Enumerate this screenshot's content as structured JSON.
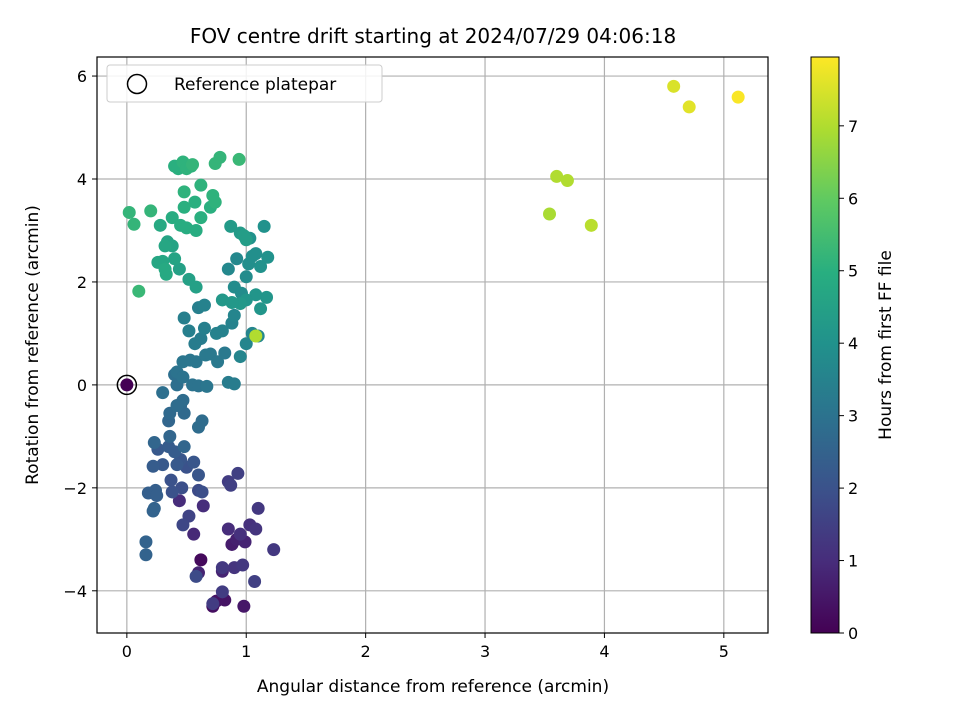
{
  "chart_data": {
    "type": "scatter",
    "title": "FOV centre drift starting at 2024/07/29 04:06:18",
    "xlabel": "Angular distance from reference (arcmin)",
    "ylabel": "Rotation from reference (arcmin)",
    "xlim": [
      -0.25,
      5.37
    ],
    "ylim": [
      -4.82,
      6.37
    ],
    "xticks": [
      0,
      1,
      2,
      3,
      4,
      5
    ],
    "yticks": [
      -4,
      -2,
      0,
      2,
      4,
      6
    ],
    "grid": true,
    "legend": {
      "position": "top-left",
      "entries": [
        "Reference platepar"
      ]
    },
    "reference_point": {
      "x": 0,
      "y": 0
    },
    "colorbar": {
      "label": "Hours from first FF file",
      "colormap": "viridis",
      "range": [
        0,
        7.95
      ],
      "ticks": [
        0,
        1,
        2,
        3,
        4,
        5,
        6,
        7
      ]
    },
    "series": [
      {
        "points": [
          {
            "x": 0.0,
            "y": 0.0,
            "c": 0.0
          },
          {
            "x": 0.62,
            "y": -3.4,
            "c": 0.2
          },
          {
            "x": 0.72,
            "y": -4.3,
            "c": 0.3
          },
          {
            "x": 0.75,
            "y": -4.2,
            "c": 0.4
          },
          {
            "x": 0.82,
            "y": -4.18,
            "c": 0.4
          },
          {
            "x": 0.98,
            "y": -4.3,
            "c": 0.5
          },
          {
            "x": 0.88,
            "y": -3.1,
            "c": 0.6
          },
          {
            "x": 0.92,
            "y": -3.0,
            "c": 0.7
          },
          {
            "x": 0.99,
            "y": -3.05,
            "c": 0.8
          },
          {
            "x": 0.8,
            "y": -3.62,
            "c": 0.8
          },
          {
            "x": 0.6,
            "y": -3.65,
            "c": 0.8
          },
          {
            "x": 0.56,
            "y": -2.9,
            "c": 0.9
          },
          {
            "x": 0.64,
            "y": -2.35,
            "c": 1.0
          },
          {
            "x": 0.44,
            "y": -2.25,
            "c": 1.0
          },
          {
            "x": 0.85,
            "y": -2.8,
            "c": 1.0
          },
          {
            "x": 0.95,
            "y": -2.9,
            "c": 1.1
          },
          {
            "x": 1.03,
            "y": -2.72,
            "c": 1.1
          },
          {
            "x": 1.08,
            "y": -2.8,
            "c": 1.2
          },
          {
            "x": 1.1,
            "y": -2.4,
            "c": 1.3
          },
          {
            "x": 1.23,
            "y": -3.2,
            "c": 1.3
          },
          {
            "x": 0.9,
            "y": -3.55,
            "c": 1.2
          },
          {
            "x": 0.97,
            "y": -3.5,
            "c": 1.3
          },
          {
            "x": 0.8,
            "y": -3.55,
            "c": 1.3
          },
          {
            "x": 0.8,
            "y": -4.02,
            "c": 1.4
          },
          {
            "x": 0.72,
            "y": -4.25,
            "c": 1.4
          },
          {
            "x": 1.07,
            "y": -3.82,
            "c": 1.5
          },
          {
            "x": 0.85,
            "y": -1.88,
            "c": 1.4
          },
          {
            "x": 0.87,
            "y": -1.95,
            "c": 1.5
          },
          {
            "x": 0.93,
            "y": -1.72,
            "c": 1.5
          },
          {
            "x": 0.52,
            "y": -2.55,
            "c": 1.6
          },
          {
            "x": 0.47,
            "y": -2.72,
            "c": 1.7
          },
          {
            "x": 0.58,
            "y": -3.72,
            "c": 1.8
          },
          {
            "x": 0.6,
            "y": -2.05,
            "c": 1.8
          },
          {
            "x": 0.63,
            "y": -2.08,
            "c": 1.9
          },
          {
            "x": 0.46,
            "y": -2.0,
            "c": 1.9
          },
          {
            "x": 0.38,
            "y": -2.08,
            "c": 2.0
          },
          {
            "x": 0.37,
            "y": -1.85,
            "c": 2.0
          },
          {
            "x": 0.5,
            "y": -1.6,
            "c": 2.0
          },
          {
            "x": 0.56,
            "y": -1.5,
            "c": 2.1
          },
          {
            "x": 0.6,
            "y": -1.75,
            "c": 2.1
          },
          {
            "x": 0.45,
            "y": -1.45,
            "c": 2.1
          },
          {
            "x": 0.42,
            "y": -1.55,
            "c": 2.2
          },
          {
            "x": 0.3,
            "y": -1.55,
            "c": 2.2
          },
          {
            "x": 0.26,
            "y": -1.25,
            "c": 2.2
          },
          {
            "x": 0.35,
            "y": -1.2,
            "c": 2.3
          },
          {
            "x": 0.4,
            "y": -1.3,
            "c": 2.3
          },
          {
            "x": 0.22,
            "y": -1.58,
            "c": 2.3
          },
          {
            "x": 0.24,
            "y": -2.05,
            "c": 2.4
          },
          {
            "x": 0.18,
            "y": -2.1,
            "c": 2.4
          },
          {
            "x": 0.25,
            "y": -2.15,
            "c": 2.4
          },
          {
            "x": 0.23,
            "y": -2.4,
            "c": 2.5
          },
          {
            "x": 0.22,
            "y": -2.45,
            "c": 2.5
          },
          {
            "x": 0.16,
            "y": -3.05,
            "c": 2.5
          },
          {
            "x": 0.16,
            "y": -3.3,
            "c": 2.5
          },
          {
            "x": 0.36,
            "y": -1.0,
            "c": 2.6
          },
          {
            "x": 0.23,
            "y": -1.12,
            "c": 2.6
          },
          {
            "x": 0.48,
            "y": -1.2,
            "c": 2.6
          },
          {
            "x": 0.35,
            "y": -0.7,
            "c": 2.6
          },
          {
            "x": 0.36,
            "y": -0.55,
            "c": 2.7
          },
          {
            "x": 0.45,
            "y": -0.4,
            "c": 2.7
          },
          {
            "x": 0.48,
            "y": -0.55,
            "c": 2.7
          },
          {
            "x": 0.6,
            "y": -0.82,
            "c": 2.8
          },
          {
            "x": 0.63,
            "y": -0.7,
            "c": 2.8
          },
          {
            "x": 0.47,
            "y": -0.3,
            "c": 2.8
          },
          {
            "x": 0.42,
            "y": -0.4,
            "c": 2.8
          },
          {
            "x": 0.3,
            "y": -0.15,
            "c": 2.9
          },
          {
            "x": 0.42,
            "y": 0.0,
            "c": 2.9
          },
          {
            "x": 0.4,
            "y": 0.2,
            "c": 2.9
          },
          {
            "x": 0.42,
            "y": 0.25,
            "c": 3.0
          },
          {
            "x": 0.47,
            "y": 0.15,
            "c": 3.0
          },
          {
            "x": 0.55,
            "y": 0.0,
            "c": 3.0
          },
          {
            "x": 0.6,
            "y": -0.02,
            "c": 3.0
          },
          {
            "x": 0.67,
            "y": -0.03,
            "c": 3.1
          },
          {
            "x": 0.47,
            "y": 0.45,
            "c": 3.1
          },
          {
            "x": 0.53,
            "y": 0.48,
            "c": 3.1
          },
          {
            "x": 0.58,
            "y": 0.45,
            "c": 3.1
          },
          {
            "x": 0.66,
            "y": 0.58,
            "c": 3.2
          },
          {
            "x": 0.7,
            "y": 0.6,
            "c": 3.2
          },
          {
            "x": 0.76,
            "y": 0.45,
            "c": 3.2
          },
          {
            "x": 0.82,
            "y": 0.62,
            "c": 3.2
          },
          {
            "x": 0.85,
            "y": 0.05,
            "c": 3.3
          },
          {
            "x": 0.9,
            "y": 0.02,
            "c": 3.3
          },
          {
            "x": 0.57,
            "y": 0.8,
            "c": 3.3
          },
          {
            "x": 0.62,
            "y": 0.9,
            "c": 3.3
          },
          {
            "x": 0.65,
            "y": 1.1,
            "c": 3.4
          },
          {
            "x": 0.52,
            "y": 1.05,
            "c": 3.4
          },
          {
            "x": 0.48,
            "y": 1.3,
            "c": 3.4
          },
          {
            "x": 0.6,
            "y": 1.5,
            "c": 3.4
          },
          {
            "x": 0.65,
            "y": 1.55,
            "c": 3.5
          },
          {
            "x": 0.75,
            "y": 1.0,
            "c": 3.5
          },
          {
            "x": 0.8,
            "y": 1.05,
            "c": 3.5
          },
          {
            "x": 0.88,
            "y": 1.2,
            "c": 3.5
          },
          {
            "x": 0.9,
            "y": 1.35,
            "c": 3.6
          },
          {
            "x": 0.95,
            "y": 0.55,
            "c": 3.6
          },
          {
            "x": 1.0,
            "y": 0.8,
            "c": 3.6
          },
          {
            "x": 1.05,
            "y": 1.0,
            "c": 3.6
          },
          {
            "x": 1.1,
            "y": 0.95,
            "c": 3.7
          },
          {
            "x": 0.85,
            "y": 2.25,
            "c": 3.7
          },
          {
            "x": 0.92,
            "y": 2.45,
            "c": 3.7
          },
          {
            "x": 0.9,
            "y": 1.9,
            "c": 3.8
          },
          {
            "x": 0.96,
            "y": 1.78,
            "c": 3.8
          },
          {
            "x": 1.0,
            "y": 2.1,
            "c": 3.8
          },
          {
            "x": 1.02,
            "y": 2.35,
            "c": 3.9
          },
          {
            "x": 1.05,
            "y": 2.5,
            "c": 3.9
          },
          {
            "x": 1.08,
            "y": 2.55,
            "c": 3.9
          },
          {
            "x": 1.12,
            "y": 2.3,
            "c": 4.0
          },
          {
            "x": 1.18,
            "y": 2.48,
            "c": 4.0
          },
          {
            "x": 1.15,
            "y": 3.08,
            "c": 4.0
          },
          {
            "x": 1.03,
            "y": 2.85,
            "c": 4.0
          },
          {
            "x": 1.17,
            "y": 1.7,
            "c": 4.1
          },
          {
            "x": 1.12,
            "y": 1.48,
            "c": 4.1
          },
          {
            "x": 1.08,
            "y": 1.75,
            "c": 4.1
          },
          {
            "x": 1.0,
            "y": 1.65,
            "c": 4.1
          },
          {
            "x": 0.95,
            "y": 1.58,
            "c": 4.2
          },
          {
            "x": 0.8,
            "y": 1.65,
            "c": 4.2
          },
          {
            "x": 0.88,
            "y": 1.6,
            "c": 4.2
          },
          {
            "x": 0.87,
            "y": 3.08,
            "c": 4.3
          },
          {
            "x": 0.95,
            "y": 2.95,
            "c": 4.3
          },
          {
            "x": 0.98,
            "y": 2.9,
            "c": 4.4
          },
          {
            "x": 1.0,
            "y": 2.82,
            "c": 4.4
          },
          {
            "x": 0.58,
            "y": 1.9,
            "c": 4.5
          },
          {
            "x": 0.52,
            "y": 2.05,
            "c": 4.5
          },
          {
            "x": 0.44,
            "y": 2.25,
            "c": 4.5
          },
          {
            "x": 0.4,
            "y": 2.45,
            "c": 4.6
          },
          {
            "x": 0.38,
            "y": 2.7,
            "c": 4.6
          },
          {
            "x": 0.34,
            "y": 2.78,
            "c": 4.6
          },
          {
            "x": 0.32,
            "y": 2.7,
            "c": 4.7
          },
          {
            "x": 0.3,
            "y": 2.4,
            "c": 4.7
          },
          {
            "x": 0.26,
            "y": 2.38,
            "c": 4.7
          },
          {
            "x": 0.33,
            "y": 2.15,
            "c": 4.8
          },
          {
            "x": 0.32,
            "y": 2.25,
            "c": 4.8
          },
          {
            "x": 0.28,
            "y": 3.1,
            "c": 4.8
          },
          {
            "x": 0.38,
            "y": 3.25,
            "c": 4.9
          },
          {
            "x": 0.45,
            "y": 3.1,
            "c": 4.9
          },
          {
            "x": 0.5,
            "y": 3.05,
            "c": 4.9
          },
          {
            "x": 0.58,
            "y": 3.0,
            "c": 4.9
          },
          {
            "x": 0.48,
            "y": 3.45,
            "c": 5.0
          },
          {
            "x": 0.57,
            "y": 3.55,
            "c": 5.0
          },
          {
            "x": 0.62,
            "y": 3.25,
            "c": 5.0
          },
          {
            "x": 0.7,
            "y": 3.45,
            "c": 5.0
          },
          {
            "x": 0.72,
            "y": 3.68,
            "c": 5.1
          },
          {
            "x": 0.74,
            "y": 3.55,
            "c": 5.1
          },
          {
            "x": 0.62,
            "y": 3.88,
            "c": 5.1
          },
          {
            "x": 0.48,
            "y": 3.75,
            "c": 5.1
          },
          {
            "x": 0.2,
            "y": 3.38,
            "c": 5.2
          },
          {
            "x": 0.02,
            "y": 3.35,
            "c": 5.2
          },
          {
            "x": 0.06,
            "y": 3.12,
            "c": 5.2
          },
          {
            "x": 0.1,
            "y": 1.82,
            "c": 5.3
          },
          {
            "x": 0.4,
            "y": 4.25,
            "c": 5.0
          },
          {
            "x": 0.43,
            "y": 4.2,
            "c": 5.0
          },
          {
            "x": 0.47,
            "y": 4.33,
            "c": 5.1
          },
          {
            "x": 0.5,
            "y": 4.2,
            "c": 5.1
          },
          {
            "x": 0.54,
            "y": 4.25,
            "c": 5.1
          },
          {
            "x": 0.55,
            "y": 4.28,
            "c": 5.2
          },
          {
            "x": 0.74,
            "y": 4.3,
            "c": 5.2
          },
          {
            "x": 0.78,
            "y": 4.42,
            "c": 5.2
          },
          {
            "x": 0.94,
            "y": 4.38,
            "c": 5.3
          },
          {
            "x": 1.08,
            "y": 0.95,
            "c": 7.0
          },
          {
            "x": 3.54,
            "y": 3.32,
            "c": 6.9
          },
          {
            "x": 3.6,
            "y": 4.05,
            "c": 7.0
          },
          {
            "x": 3.69,
            "y": 3.97,
            "c": 7.0
          },
          {
            "x": 3.89,
            "y": 3.1,
            "c": 7.1
          },
          {
            "x": 4.58,
            "y": 5.8,
            "c": 7.5
          },
          {
            "x": 4.71,
            "y": 5.4,
            "c": 7.6
          },
          {
            "x": 5.12,
            "y": 5.59,
            "c": 7.9
          }
        ]
      }
    ]
  }
}
